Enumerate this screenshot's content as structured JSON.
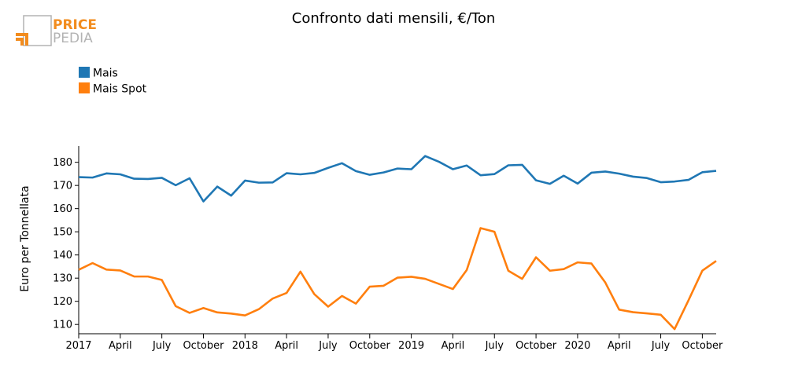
{
  "logo": {
    "line1": "PRICE",
    "line2": "PEDIA",
    "accent_color": "#f28c1e",
    "gray_color": "#b3b3b3"
  },
  "chart_data": {
    "type": "line",
    "title": "Confronto dati mensili, €/Ton",
    "ylabel": "Euro per Tonnellata",
    "xlabel": "",
    "ylim": [
      106,
      187
    ],
    "yticks": [
      110,
      120,
      130,
      140,
      150,
      160,
      170,
      180
    ],
    "xlim": [
      "2017-01",
      "2020-11"
    ],
    "xticks": [
      {
        "month": "2017-01",
        "label": "2017"
      },
      {
        "month": "2017-04",
        "label": "April"
      },
      {
        "month": "2017-07",
        "label": "July"
      },
      {
        "month": "2017-10",
        "label": "October"
      },
      {
        "month": "2018-01",
        "label": "2018"
      },
      {
        "month": "2018-04",
        "label": "April"
      },
      {
        "month": "2018-07",
        "label": "July"
      },
      {
        "month": "2018-10",
        "label": "October"
      },
      {
        "month": "2019-01",
        "label": "2019"
      },
      {
        "month": "2019-04",
        "label": "April"
      },
      {
        "month": "2019-07",
        "label": "July"
      },
      {
        "month": "2019-10",
        "label": "October"
      },
      {
        "month": "2020-01",
        "label": "2020"
      },
      {
        "month": "2020-04",
        "label": "April"
      },
      {
        "month": "2020-07",
        "label": "July"
      },
      {
        "month": "2020-10",
        "label": "October"
      }
    ],
    "legend_position": "top-left",
    "grid": false,
    "x": [
      "2017-01",
      "2017-02",
      "2017-03",
      "2017-04",
      "2017-05",
      "2017-06",
      "2017-07",
      "2017-08",
      "2017-09",
      "2017-10",
      "2017-11",
      "2017-12",
      "2018-01",
      "2018-02",
      "2018-03",
      "2018-04",
      "2018-05",
      "2018-06",
      "2018-07",
      "2018-08",
      "2018-09",
      "2018-10",
      "2018-11",
      "2018-12",
      "2019-01",
      "2019-02",
      "2019-03",
      "2019-04",
      "2019-05",
      "2019-06",
      "2019-07",
      "2019-08",
      "2019-09",
      "2019-10",
      "2019-11",
      "2019-12",
      "2020-01",
      "2020-02",
      "2020-03",
      "2020-04",
      "2020-05",
      "2020-06",
      "2020-07",
      "2020-08",
      "2020-09",
      "2020-10",
      "2020-11"
    ],
    "series": [
      {
        "name": "Mais",
        "color": "#1f77b4",
        "values": [
          173.6,
          173.4,
          175.2,
          174.8,
          172.9,
          172.8,
          173.3,
          170.1,
          173.1,
          163.1,
          169.5,
          165.6,
          172.1,
          171.2,
          171.3,
          175.3,
          174.8,
          175.4,
          177.6,
          179.6,
          176.2,
          174.6,
          175.6,
          177.3,
          177.0,
          182.7,
          180.2,
          177.0,
          178.6,
          174.4,
          174.9,
          178.7,
          178.9,
          172.2,
          170.7,
          174.2,
          170.8,
          175.5,
          176.0,
          175.1,
          173.8,
          173.2,
          171.4,
          171.7,
          172.4,
          175.7,
          176.3
        ]
      },
      {
        "name": "Mais Spot",
        "color": "#ff7f0e",
        "values": [
          133.6,
          136.5,
          133.7,
          133.3,
          130.7,
          130.7,
          129.2,
          117.9,
          115.0,
          117.1,
          115.2,
          114.7,
          113.9,
          116.6,
          121.2,
          123.6,
          132.8,
          123.1,
          117.7,
          122.3,
          119.0,
          126.3,
          126.7,
          130.2,
          130.6,
          129.7,
          127.5,
          125.3,
          133.5,
          151.6,
          150.0,
          133.2,
          129.7,
          139.0,
          133.2,
          133.9,
          136.8,
          136.3,
          128.1,
          116.4,
          115.3,
          114.8,
          114.2,
          108.0,
          120.4,
          133.2,
          137.4
        ]
      }
    ]
  }
}
